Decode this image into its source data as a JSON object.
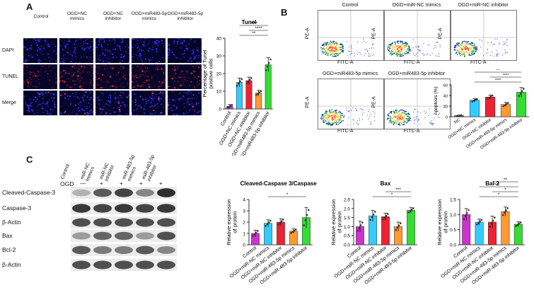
{
  "panelA": {
    "label": "A",
    "columns": [
      "Control",
      "OGD+NC\nmimics",
      "OGD+NC\ninhibitor",
      "OGD+miR483-5p\nmimics",
      "OGD+miR483-5p\ninhibitor"
    ],
    "rows": [
      "DAPI",
      "TUNEL",
      "Merge"
    ]
  },
  "panelB": {
    "label": "B",
    "flow_titles": [
      "Control",
      "OGD+miR-NC mimics",
      "OGD+miR-NC inhibitor",
      "OGD+miR483-5p mimics",
      "OGD+miR483-5p inhibitor"
    ],
    "x_axis": "FITC-A",
    "y_axis": "PE-A"
  },
  "panelC": {
    "label": "C",
    "columns": [
      "Control",
      "miR-NC\nmimics",
      "miR-NC\ninhibitor",
      "miR-483-5p\nmimics",
      "miR-483-5p\ninhibitor"
    ],
    "ogd_label": "OGD",
    "ogd_marks": [
      "—",
      "+",
      "+",
      "+",
      "+"
    ],
    "bands": [
      "Cleaved-Caspase-3",
      "Caspase-3",
      "β-Actin",
      "Bax",
      "Bcl-2",
      "β-Actin"
    ]
  },
  "colors": {
    "control": "#cc33cc",
    "nc_mimics": "#33ccff",
    "nc_inhibitor": "#ee2233",
    "mir_mimics": "#ff9933",
    "mir_inhibitor": "#33dd33"
  },
  "chart_data": [
    {
      "type": "bar",
      "title": "Tunel",
      "ylabel": "Percentage of Tunel\npositive cells",
      "ylim": [
        0,
        40
      ],
      "yticks": [
        0,
        10,
        20,
        30,
        40
      ],
      "categories": [
        "Control",
        "OGD+NC mimics",
        "OGD+NC inhibitor",
        "OGD+miR483-5p mimics",
        "OGD+miR483-5p inhibitor"
      ],
      "values": [
        1.5,
        15,
        16,
        9,
        25
      ],
      "errors": [
        1,
        2.5,
        2,
        1.5,
        4
      ],
      "annotations": [
        "**",
        "****",
        "****"
      ]
    },
    {
      "type": "bar",
      "title": "",
      "ylabel": "Apoptosis (%)",
      "ylim": [
        0,
        60
      ],
      "yticks": [
        0,
        20,
        40,
        60
      ],
      "categories": [
        "NC",
        "OGD+NC mimics",
        "OGD+NC inhibitor",
        "OGD+miR-483-5p mimics",
        "OGD+miR-483-5p inhibitor"
      ],
      "values": [
        2,
        31,
        37,
        23,
        46
      ],
      "errors": [
        1,
        3,
        4,
        4,
        9
      ],
      "annotations": [
        "****",
        "****",
        "***",
        "****",
        "****"
      ]
    },
    {
      "type": "bar",
      "title": "Cleaved-Caspase 3/Caspase 3",
      "ylabel": "Relative expression\nof protein",
      "ylim": [
        0,
        4
      ],
      "yticks": [
        0,
        1,
        2,
        3,
        4
      ],
      "categories": [
        "Control",
        "OGD+miR-NC mimics",
        "OGD+miR-NC inhibitor",
        "OGD+miR-483-5p mimics",
        "OGD+miR-483-5p inhibitor"
      ],
      "values": [
        1.0,
        1.9,
        2.0,
        1.2,
        2.4
      ],
      "errors": [
        0.3,
        0.3,
        0.3,
        0.2,
        0.9
      ],
      "annotations": [
        "*"
      ]
    },
    {
      "type": "bar",
      "title": "Bax",
      "ylabel": "Relative expression\nof protein",
      "ylim": [
        0,
        2.5
      ],
      "yticks": [
        0.0,
        0.5,
        1.0,
        1.5,
        2.0,
        2.5
      ],
      "categories": [
        "Control",
        "OGD+miR-NC mimics",
        "OGD+miR-NC inhibitor",
        "OGD+miR-483-5p mimics",
        "OGD+miR-483-5p inhibitor"
      ],
      "values": [
        1.0,
        1.6,
        1.55,
        1.0,
        1.9
      ],
      "errors": [
        0.3,
        0.3,
        0.2,
        0.25,
        0.15
      ],
      "annotations": [
        "*",
        "***"
      ]
    },
    {
      "type": "bar",
      "title": "Bal-2",
      "ylabel": "Relative expression\nof protein",
      "ylim": [
        0,
        1.5
      ],
      "yticks": [
        0.0,
        0.5,
        1.0,
        1.5
      ],
      "categories": [
        "Control",
        "OGD+miR-NC mimics",
        "OGD+miR-NC inhibitor",
        "OGD+miR-483-5p mimics",
        "OGD+miR-483-5p inhibitor"
      ],
      "values": [
        1.0,
        0.75,
        0.75,
        1.1,
        0.68
      ],
      "errors": [
        0.2,
        0.1,
        0.2,
        0.15,
        0.08
      ],
      "annotations": [
        "*",
        "*",
        "*",
        "**"
      ]
    }
  ]
}
